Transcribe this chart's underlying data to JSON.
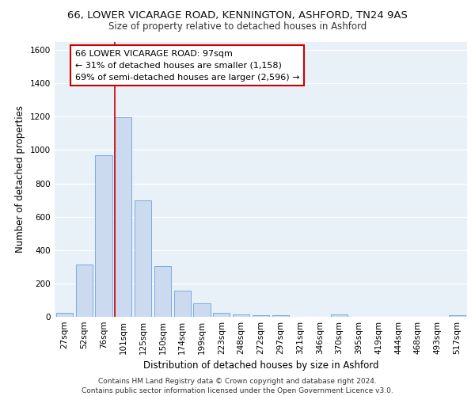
{
  "title_line1": "66, LOWER VICARAGE ROAD, KENNINGTON, ASHFORD, TN24 9AS",
  "title_line2": "Size of property relative to detached houses in Ashford",
  "xlabel": "Distribution of detached houses by size in Ashford",
  "ylabel": "Number of detached properties",
  "categories": [
    "27sqm",
    "52sqm",
    "76sqm",
    "101sqm",
    "125sqm",
    "150sqm",
    "174sqm",
    "199sqm",
    "223sqm",
    "248sqm",
    "272sqm",
    "297sqm",
    "321sqm",
    "346sqm",
    "370sqm",
    "395sqm",
    "419sqm",
    "444sqm",
    "468sqm",
    "493sqm",
    "517sqm"
  ],
  "values": [
    25,
    315,
    970,
    1195,
    700,
    305,
    155,
    80,
    25,
    15,
    10,
    10,
    0,
    0,
    15,
    0,
    0,
    0,
    0,
    0,
    10
  ],
  "bar_color": "#ccdaf0",
  "bar_edge_color": "#7aabe0",
  "vline_color": "#cc0000",
  "vline_x_index": 3,
  "annotation_text_line1": "66 LOWER VICARAGE ROAD: 97sqm",
  "annotation_text_line2": "← 31% of detached houses are smaller (1,158)",
  "annotation_text_line3": "69% of semi-detached houses are larger (2,596) →",
  "annotation_box_color": "#ffffff",
  "annotation_box_edge": "#cc0000",
  "ylim": [
    0,
    1650
  ],
  "yticks": [
    0,
    200,
    400,
    600,
    800,
    1000,
    1200,
    1400,
    1600
  ],
  "footnote_line1": "Contains HM Land Registry data © Crown copyright and database right 2024.",
  "footnote_line2": "Contains public sector information licensed under the Open Government Licence v3.0.",
  "background_color": "#e8f0f8",
  "grid_color": "#ffffff",
  "title_fontsize": 9.5,
  "subtitle_fontsize": 8.5,
  "label_fontsize": 8.5,
  "tick_fontsize": 7.5,
  "annotation_fontsize": 8,
  "footnote_fontsize": 6.5
}
